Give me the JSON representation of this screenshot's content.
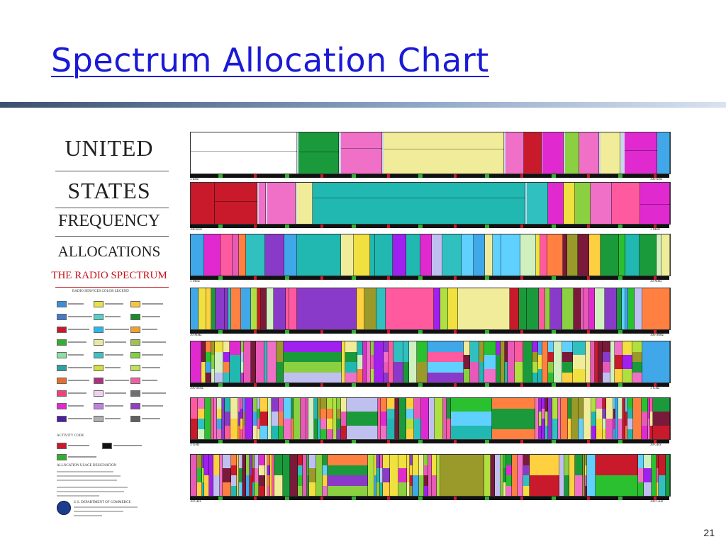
{
  "slide": {
    "title": "Spectrum Allocation Chart",
    "page_number": "21"
  },
  "poster": {
    "line1": "UNITED",
    "line2": "STATES",
    "line3": "FREQUENCY",
    "line4": "ALLOCATIONS",
    "subtitle": "THE RADIO SPECTRUM",
    "legend_title": "RADIO SERVICES COLOR LEGEND",
    "activity_title": "ACTIVITY CODE",
    "usage_title": "ALLOCATION USAGE DESIGNATION",
    "department": "U.S. DEPARTMENT OF COMMERCE",
    "legend_colors": [
      "#3a8fd8",
      "#e8e04a",
      "#f5c542",
      "#4a78c8",
      "#5ad0c8",
      "#1a8a2a",
      "#c81a2a",
      "#2ab8e8",
      "#f0a030",
      "#30b030",
      "#e8e8a0",
      "#a0c050",
      "#8ae0a0",
      "#40c0c0",
      "#80d040",
      "#30a0a0",
      "#d0e040",
      "#c0e060",
      "#e07030",
      "#b03080",
      "#f060a0",
      "#f04080",
      "#f0d0f0",
      "#707070",
      "#e02ad0",
      "#c080e0",
      "#9040c0",
      "#4a20a0",
      "#b0b0b0",
      "#606060"
    ]
  },
  "chart": {
    "band_edges": [
      {
        "left": "3 kHz",
        "right": "300 kHz"
      },
      {
        "left": "300 kHz",
        "right": "3 MHz"
      },
      {
        "left": "3 MHz",
        "right": "30 MHz"
      },
      {
        "left": "30 MHz",
        "right": "300 MHz"
      },
      {
        "left": "300 MHz",
        "right": "3 GHz"
      },
      {
        "left": "3 GHz",
        "right": "30 GHz"
      },
      {
        "left": "30 GHz",
        "right": "300 GHz"
      }
    ],
    "palette": [
      "#ffffff",
      "#1a9a3a",
      "#e02ad0",
      "#f070c8",
      "#f0ec9a",
      "#c81a2a",
      "#20b8b0",
      "#40a8e8",
      "#8ad040",
      "#f0e040",
      "#8a3ac8",
      "#30c0c0",
      "#e85ab8",
      "#d0f0c0",
      "#7a1a3a",
      "#c0c0f0",
      "#ff5aa0",
      "#2ac030",
      "#a020f0",
      "#ffd040",
      "#60d0ff",
      "#b0e040",
      "#ff8040",
      "#9a9a2a"
    ]
  }
}
